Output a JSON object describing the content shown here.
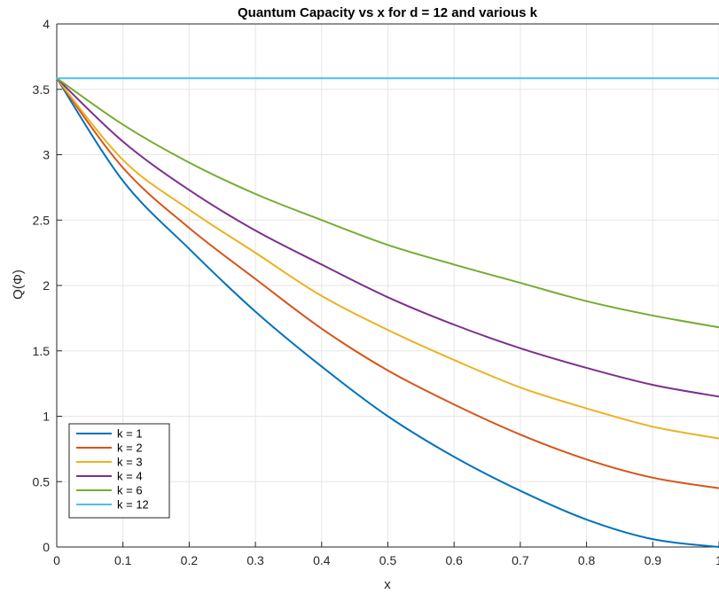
{
  "chart_data": {
    "type": "line",
    "title": "Quantum Capacity vs x for d = 12 and various k",
    "xlabel": "x",
    "ylabel": "Q(Φ)",
    "xlim": [
      0,
      1
    ],
    "ylim": [
      0,
      4
    ],
    "xticks": [
      "0",
      "0.1",
      "0.2",
      "0.3",
      "0.4",
      "0.5",
      "0.6",
      "0.7",
      "0.8",
      "0.9",
      "1"
    ],
    "yticks": [
      "0",
      "0.5",
      "1",
      "1.5",
      "2",
      "2.5",
      "3",
      "3.5",
      "4"
    ],
    "grid": true,
    "legend_position": "bottom-left",
    "x": [
      0,
      0.1,
      0.2,
      0.3,
      0.4,
      0.5,
      0.6,
      0.7,
      0.8,
      0.9,
      1.0
    ],
    "series": [
      {
        "name": "k = 1",
        "color": "#0072BD",
        "values": [
          3.585,
          2.8,
          2.28,
          1.8,
          1.38,
          1.0,
          0.69,
          0.43,
          0.21,
          0.06,
          0.0
        ]
      },
      {
        "name": "k = 2",
        "color": "#D95319",
        "values": [
          3.585,
          2.9,
          2.44,
          2.05,
          1.67,
          1.35,
          1.09,
          0.86,
          0.67,
          0.53,
          0.45
        ]
      },
      {
        "name": "k = 3",
        "color": "#EDB120",
        "values": [
          3.585,
          2.96,
          2.58,
          2.25,
          1.92,
          1.66,
          1.43,
          1.22,
          1.06,
          0.92,
          0.83
        ]
      },
      {
        "name": "k = 4",
        "color": "#7E2F8E",
        "values": [
          3.585,
          3.1,
          2.73,
          2.42,
          2.16,
          1.91,
          1.7,
          1.52,
          1.37,
          1.24,
          1.15
        ]
      },
      {
        "name": "k = 6",
        "color": "#77AC30",
        "values": [
          3.585,
          3.23,
          2.94,
          2.7,
          2.5,
          2.31,
          2.16,
          2.02,
          1.88,
          1.77,
          1.68
        ]
      },
      {
        "name": "k = 12",
        "color": "#4DBEEE",
        "values": [
          3.585,
          3.585,
          3.585,
          3.585,
          3.585,
          3.585,
          3.585,
          3.585,
          3.585,
          3.585,
          3.585
        ]
      }
    ]
  }
}
